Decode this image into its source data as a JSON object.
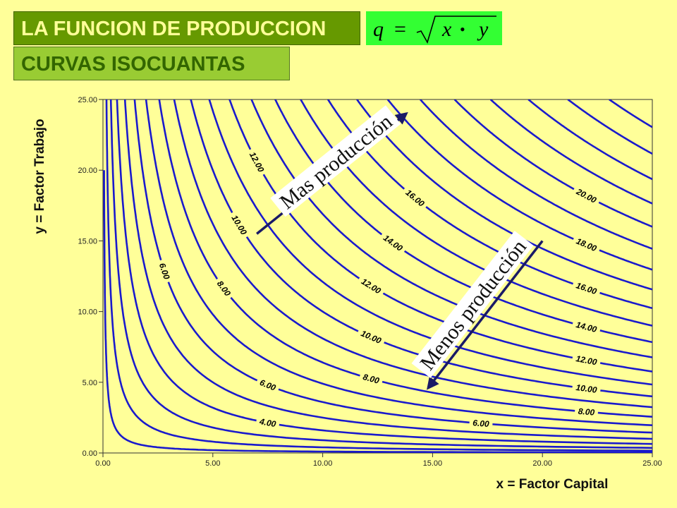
{
  "header": {
    "title": "LA FUNCION DE PRODUCCION",
    "subtitle": "CURVAS ISOCUANTAS",
    "formula": {
      "lhs": "q",
      "eq": "=",
      "x": "x",
      "dot": "•",
      "y": "y"
    }
  },
  "colors": {
    "background": "#ffff99",
    "curve": "#1a1acc",
    "title_bg": "#669900",
    "subtitle_bg": "#99cc33",
    "formula_bg": "#33ff33"
  },
  "chart_data": {
    "type": "contour",
    "function": "q = sqrt(x * y)",
    "xlabel": "x = Factor Capital",
    "ylabel": "y = Factor Trabajo",
    "xlim": [
      0,
      25
    ],
    "ylim": [
      0,
      25
    ],
    "xticks": [
      "0.00",
      "5.00",
      "10.00",
      "15.00",
      "20.00",
      "25.00"
    ],
    "yticks": [
      "0.00",
      "5.00",
      "10.00",
      "15.00",
      "20.00",
      "25.00"
    ],
    "levels": [
      1,
      2,
      3,
      4,
      5,
      6,
      7,
      8,
      9,
      10,
      11,
      12,
      13,
      14,
      15,
      16,
      17,
      18,
      19,
      20,
      21,
      22,
      23,
      24,
      25
    ],
    "labels": [
      {
        "text": "4.00",
        "level": 4,
        "x": 7.5
      },
      {
        "text": "6.00",
        "level": 6,
        "x": 7.5
      },
      {
        "text": "6.00",
        "level": 6,
        "x": 2.8
      },
      {
        "text": "8.00",
        "level": 8,
        "x": 12.2
      },
      {
        "text": "8.00",
        "level": 8,
        "x": 5.5
      },
      {
        "text": "10.00",
        "level": 10,
        "x": 12.2
      },
      {
        "text": "10.00",
        "level": 10,
        "x": 6.2
      },
      {
        "text": "12.00",
        "level": 12,
        "x": 12.2
      },
      {
        "text": "12.00",
        "level": 12,
        "x": 7.0
      },
      {
        "text": "14.00",
        "level": 14,
        "x": 13.2
      },
      {
        "text": "16.00",
        "level": 16,
        "x": 14.2
      },
      {
        "text": "6.00",
        "level": 6,
        "x": 17.2
      },
      {
        "text": "8.00",
        "level": 8,
        "x": 22.0
      },
      {
        "text": "10.00",
        "level": 10,
        "x": 22.0
      },
      {
        "text": "12.00",
        "level": 12,
        "x": 22.0
      },
      {
        "text": "14.00",
        "level": 14,
        "x": 22.0
      },
      {
        "text": "16.00",
        "level": 16,
        "x": 22.0
      },
      {
        "text": "18.00",
        "level": 18,
        "x": 22.0
      },
      {
        "text": "20.00",
        "level": 20,
        "x": 22.0
      }
    ],
    "annotations": [
      {
        "text": "Mas producción",
        "from": [
          7.0,
          15.5
        ],
        "to": [
          13.8,
          24.0
        ]
      },
      {
        "text": "Menos producción",
        "from": [
          20.0,
          15.0
        ],
        "to": [
          14.8,
          4.6
        ]
      }
    ],
    "grid": false,
    "legend": "none"
  }
}
